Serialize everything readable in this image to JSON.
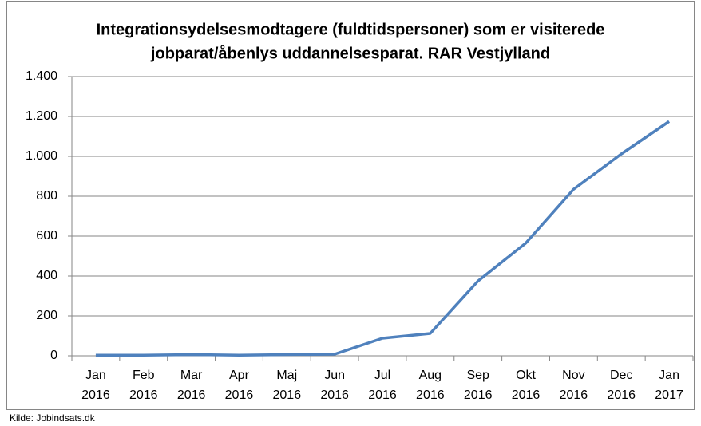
{
  "chart_data": {
    "type": "line",
    "title": [
      "Integrationsydelsesmodtagere (fuldtidspersoner) som er visiterede",
      "jobparat/åbenlys uddannelsesparat. RAR Vestjylland"
    ],
    "categories": [
      "Jan 2016",
      "Feb 2016",
      "Mar 2016",
      "Apr 2016",
      "Maj 2016",
      "Jun 2016",
      "Jul 2016",
      "Aug 2016",
      "Sep 2016",
      "Okt 2016",
      "Nov 2016",
      "Dec 2016",
      "Jan 2017"
    ],
    "values": [
      3,
      3,
      6,
      3,
      6,
      8,
      88,
      112,
      375,
      565,
      835,
      1012,
      1175
    ],
    "color": "#4f81bd",
    "ylim": [
      0,
      1400
    ],
    "yticks": [
      0,
      200,
      400,
      600,
      800,
      {
        "value": 1000,
        "label": "1.000"
      },
      {
        "value": 1200,
        "label": "1.200"
      },
      {
        "value": 1400,
        "label": "1.400"
      }
    ],
    "grid": true,
    "source": "Kilde: Jobindsats.dk"
  }
}
